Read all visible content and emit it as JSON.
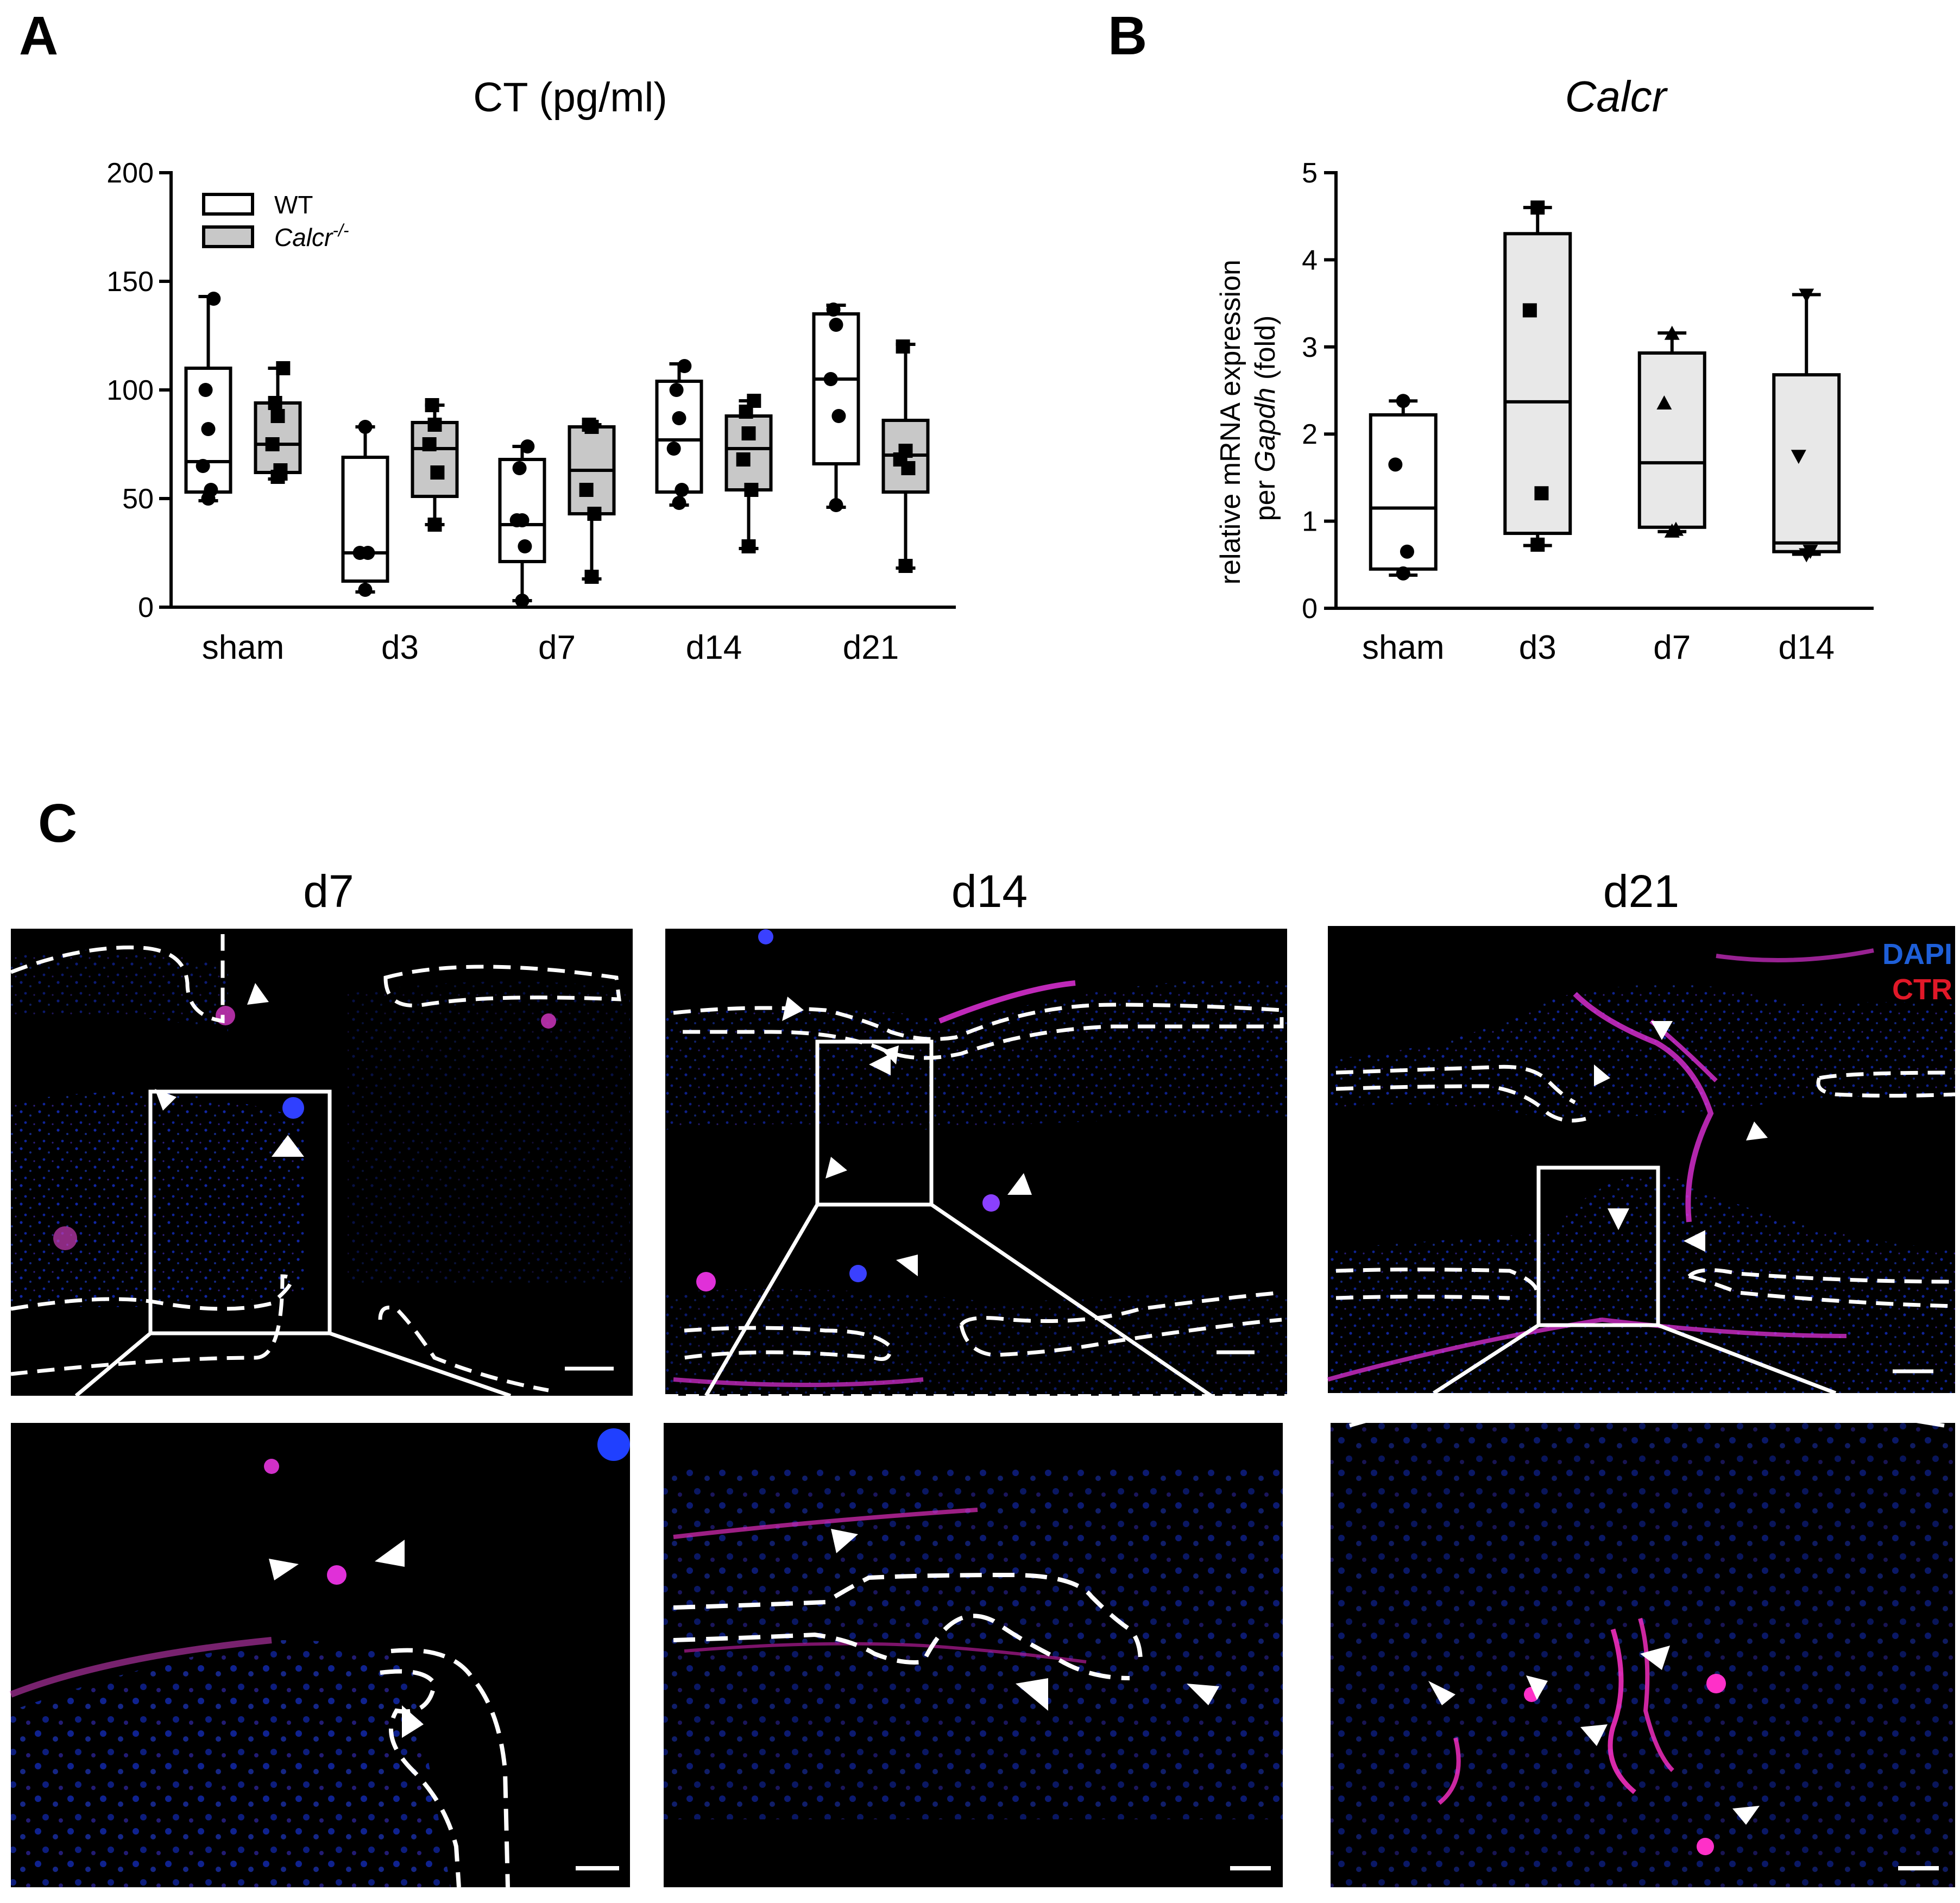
{
  "panels": {
    "A": "A",
    "B": "B",
    "C": "C"
  },
  "colors": {
    "wt_fill": "#ffffff",
    "ko_fill": "#c8c8c8",
    "b_fill": "#e8e8e8",
    "micro_bg": "#000000",
    "dapi": "#1a3cff",
    "ctr": "#ff2d8c",
    "overlay": "#ffffff"
  },
  "chart_data": [
    {
      "id": "A",
      "type": "box",
      "title": "CT (pg/ml)",
      "xlabel": "",
      "ylabel": "",
      "ylim": [
        0,
        200
      ],
      "yticks": [
        "0",
        "50",
        "100",
        "150",
        "200"
      ],
      "categories": [
        "sham",
        "d3",
        "d7",
        "d14",
        "d21"
      ],
      "legend": {
        "position": "top-left",
        "entries": [
          {
            "label": "WT"
          },
          {
            "label": "Calcr",
            "superscript": "-/-"
          }
        ]
      },
      "series": [
        {
          "name": "WT",
          "marker": "circle",
          "boxes": [
            {
              "min": 49,
              "q1": 53,
              "median": 67,
              "q3": 110,
              "max": 143,
              "points": [
                50,
                54,
                65,
                82,
                100,
                142
              ]
            },
            {
              "min": 7,
              "q1": 12,
              "median": 25,
              "q3": 69,
              "max": 83,
              "points": [
                8,
                25,
                25,
                83
              ]
            },
            {
              "min": 3,
              "q1": 21,
              "median": 38,
              "q3": 68,
              "max": 74,
              "points": [
                3,
                28,
                40,
                40,
                64,
                74
              ]
            },
            {
              "min": 47,
              "q1": 53,
              "median": 77,
              "q3": 104,
              "max": 112,
              "points": [
                48,
                54,
                73,
                87,
                100,
                111
              ]
            },
            {
              "min": 46,
              "q1": 66,
              "median": 105,
              "q3": 135,
              "max": 139,
              "points": [
                47,
                88,
                105,
                130,
                137
              ]
            }
          ]
        },
        {
          "name": "Calcr-/-",
          "marker": "square",
          "boxes": [
            {
              "min": 59,
              "q1": 62,
              "median": 75,
              "q3": 94,
              "max": 110,
              "points": [
                60,
                63,
                75,
                88,
                94,
                110
              ]
            },
            {
              "min": 38,
              "q1": 51,
              "median": 73,
              "q3": 85,
              "max": 93,
              "points": [
                38,
                62,
                75,
                84,
                93
              ]
            },
            {
              "min": 13,
              "q1": 43,
              "median": 63,
              "q3": 83,
              "max": 84,
              "points": [
                14,
                43,
                54,
                83,
                84
              ]
            },
            {
              "min": 27,
              "q1": 54,
              "median": 73,
              "q3": 88,
              "max": 95,
              "points": [
                28,
                54,
                68,
                80,
                90,
                95
              ]
            },
            {
              "min": 18,
              "q1": 53,
              "median": 70,
              "q3": 86,
              "max": 121,
              "points": [
                19,
                64,
                68,
                72,
                120
              ]
            }
          ]
        }
      ]
    },
    {
      "id": "B",
      "type": "box",
      "title": "Calcr",
      "xlabel": "",
      "ylabel_parts": [
        "relative mRNA expression",
        "per ",
        "Gapdh",
        " (fold)"
      ],
      "ylim": [
        0,
        5
      ],
      "yticks": [
        "0",
        "1",
        "2",
        "3",
        "4",
        "5"
      ],
      "categories": [
        "sham",
        "d3",
        "d7",
        "d14"
      ],
      "series": [
        {
          "name": "Calcr",
          "markers": [
            "circle",
            "square",
            "triangle-up",
            "triangle-down"
          ],
          "boxes": [
            {
              "min": 0.38,
              "q1": 0.45,
              "median": 1.15,
              "q3": 2.22,
              "max": 2.38,
              "points": [
                0.4,
                0.65,
                1.65,
                2.38
              ]
            },
            {
              "min": 0.72,
              "q1": 0.86,
              "median": 2.37,
              "q3": 4.3,
              "max": 4.6,
              "points": [
                0.73,
                1.32,
                3.42,
                4.6
              ]
            },
            {
              "min": 0.88,
              "q1": 0.93,
              "median": 1.67,
              "q3": 2.93,
              "max": 3.16,
              "points": [
                0.88,
                0.9,
                2.35,
                3.15
              ]
            },
            {
              "min": 0.62,
              "q1": 0.65,
              "median": 0.75,
              "q3": 2.68,
              "max": 3.6,
              "points": [
                0.62,
                0.66,
                1.75,
                3.6
              ]
            }
          ]
        }
      ]
    },
    {
      "id": "C",
      "type": "image-panel",
      "columns": [
        "d7",
        "d14",
        "d21"
      ],
      "channels": [
        {
          "label": "DAPI"
        },
        {
          "label": "CTR"
        }
      ]
    }
  ]
}
